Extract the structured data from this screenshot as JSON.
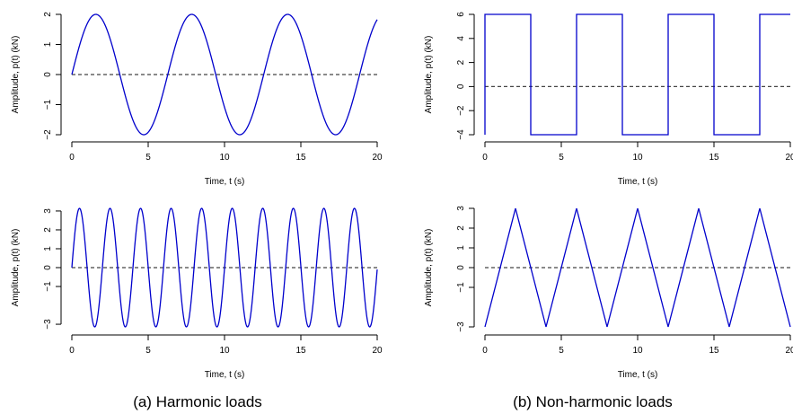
{
  "captions": {
    "left": "(a) Harmonic loads",
    "right": "(b) Non-harmonic loads"
  },
  "colors": {
    "series": "#0000cc",
    "zero_line": "#444444",
    "axis": "#000000"
  },
  "chart_data": [
    {
      "id": "p1",
      "type": "line",
      "title": "",
      "xlabel": "Time, t (s)",
      "ylabel": "Amplitude, p(t) (kN)",
      "xlim": [
        0,
        20
      ],
      "ylim": [
        -2,
        2
      ],
      "xticks": [
        0,
        5,
        10,
        15,
        20
      ],
      "yticks": [
        -2,
        -1,
        0,
        1,
        2
      ],
      "xtick_labels": [
        "0",
        "5",
        "10",
        "15",
        "20"
      ],
      "ytick_labels": [
        "−2",
        "−1",
        "0",
        "1",
        "2"
      ],
      "reference_line": {
        "y": 0,
        "style": "dashed"
      },
      "series": [
        {
          "function": "2·sin(t)",
          "amplitude": 2,
          "angular_frequency": 1,
          "x_range": [
            0,
            20
          ]
        }
      ]
    },
    {
      "id": "p2",
      "type": "line",
      "title": "",
      "xlabel": "Time, t (s)",
      "ylabel": "Amplitude, p(t) (kN)",
      "xlim": [
        0,
        20
      ],
      "ylim": [
        -4,
        6
      ],
      "xticks": [
        0,
        5,
        10,
        15,
        20
      ],
      "yticks": [
        -4,
        -2,
        0,
        2,
        4,
        6
      ],
      "xtick_labels": [
        "0",
        "5",
        "10",
        "15",
        "20"
      ],
      "ytick_labels": [
        "−4",
        "−2",
        "0",
        "2",
        "4",
        "6"
      ],
      "reference_line": {
        "y": 0,
        "style": "dashed"
      },
      "series": [
        {
          "x": [
            0,
            0,
            3,
            3,
            6,
            6,
            9,
            9,
            12,
            12,
            15,
            15,
            18,
            18,
            20
          ],
          "y": [
            -4,
            6,
            6,
            -4,
            -4,
            6,
            6,
            -4,
            -4,
            6,
            6,
            -4,
            -4,
            6,
            6
          ]
        }
      ]
    },
    {
      "id": "p3",
      "type": "line",
      "title": "",
      "xlabel": "Time, t (s)",
      "ylabel": "Amplitude, p(t) (kN)",
      "xlim": [
        0,
        20
      ],
      "ylim": [
        -3.14,
        3.14
      ],
      "xticks": [
        0,
        5,
        10,
        15,
        20
      ],
      "yticks": [
        -3,
        -1,
        0,
        1,
        2,
        3
      ],
      "xtick_labels": [
        "0",
        "5",
        "10",
        "15",
        "20"
      ],
      "ytick_labels": [
        "−3",
        "−1",
        "0",
        "1",
        "2",
        "3"
      ],
      "reference_line": {
        "y": 0,
        "style": "dashed"
      },
      "series": [
        {
          "function": "π·sin(π·t)",
          "amplitude": 3.14,
          "angular_frequency": 3.14,
          "x_range": [
            0,
            20
          ]
        }
      ]
    },
    {
      "id": "p4",
      "type": "line",
      "title": "",
      "xlabel": "Time, t (s)",
      "ylabel": "Amplitude, p(t) (kN)",
      "xlim": [
        0,
        20
      ],
      "ylim": [
        -3,
        3
      ],
      "xticks": [
        0,
        5,
        10,
        15,
        20
      ],
      "yticks": [
        -3,
        -1,
        0,
        1,
        2,
        3
      ],
      "xtick_labels": [
        "0",
        "5",
        "10",
        "15",
        "20"
      ],
      "ytick_labels": [
        "−3",
        "−1",
        "0",
        "1",
        "2",
        "3"
      ],
      "reference_line": {
        "y": 0,
        "style": "dashed"
      },
      "series": [
        {
          "x": [
            0,
            2,
            4,
            6,
            8,
            10,
            12,
            14,
            16,
            18,
            20
          ],
          "y": [
            -3,
            3,
            -3,
            3,
            -3,
            3,
            -3,
            3,
            -3,
            3,
            -3
          ]
        }
      ]
    }
  ]
}
